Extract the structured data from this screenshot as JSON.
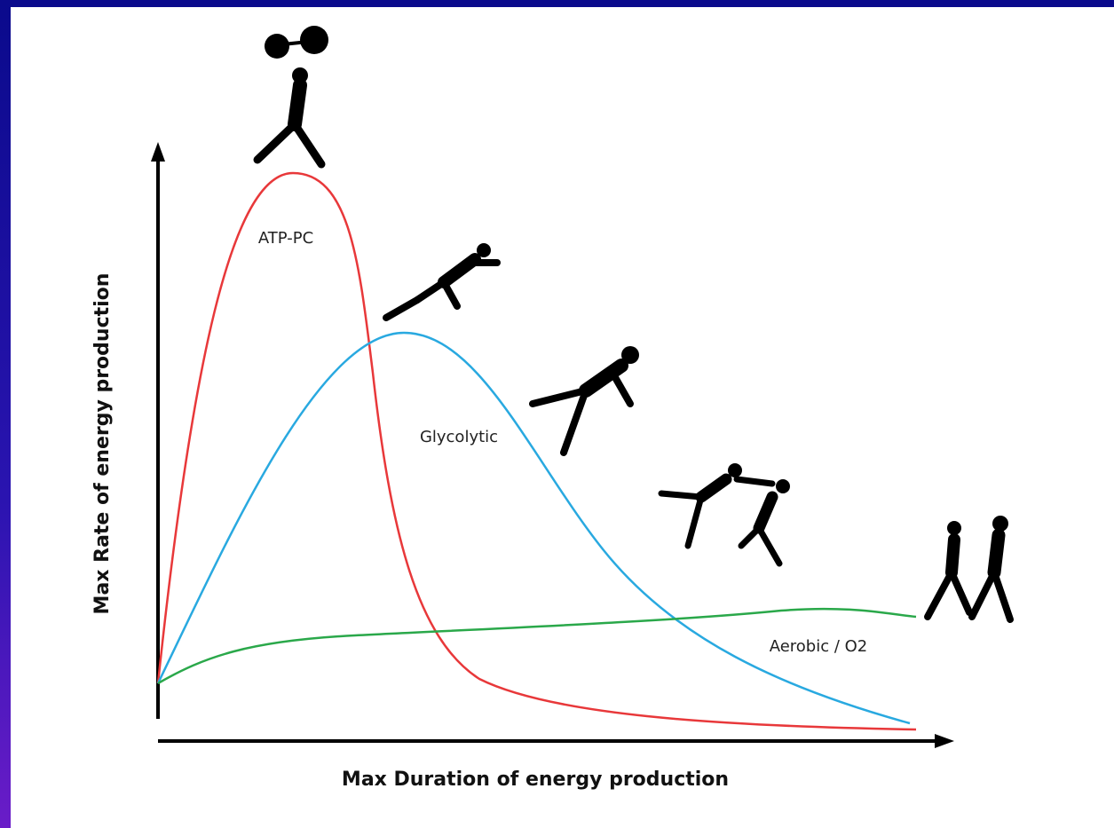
{
  "axes": {
    "y_label": "Max Rate of energy production",
    "x_label": "Max Duration of energy production"
  },
  "curves": [
    {
      "label": "ATP-PC"
    },
    {
      "label": "Glycolytic"
    },
    {
      "label": "Aerobic  / O2"
    }
  ]
}
